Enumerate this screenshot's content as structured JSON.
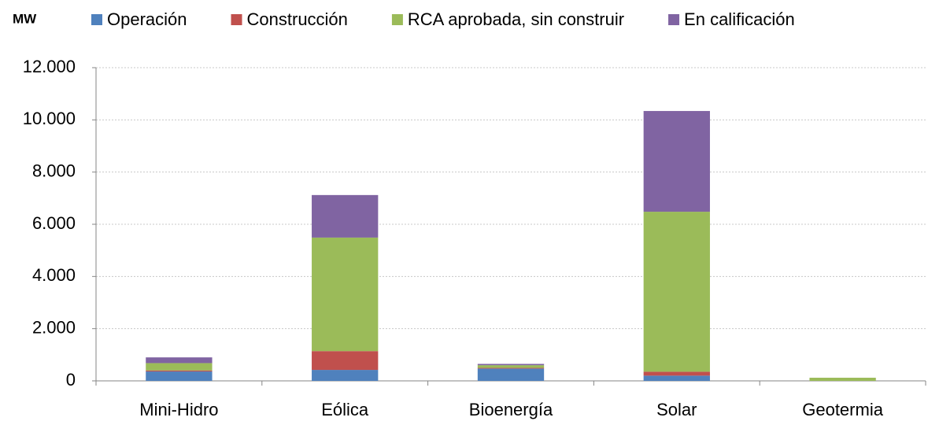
{
  "chart_data": {
    "type": "stacked_bar",
    "y_label": "MW",
    "categories": [
      "Mini-Hidro",
      "Eólica",
      "Bioenergía",
      "Solar",
      "Geotermia"
    ],
    "series": [
      {
        "name": "Operación",
        "color": "#4f81bd",
        "values": [
          360,
          420,
          470,
          200,
          0
        ]
      },
      {
        "name": "Construcción",
        "color": "#c0504d",
        "values": [
          40,
          720,
          30,
          150,
          0
        ]
      },
      {
        "name": "RCA aprobada, sin construir",
        "color": "#9bbb59",
        "values": [
          280,
          4350,
          100,
          6130,
          120
        ]
      },
      {
        "name": "En calificación",
        "color": "#8064a2",
        "values": [
          220,
          1630,
          50,
          3860,
          0
        ]
      }
    ],
    "ylim": [
      0,
      12000
    ],
    "yticks": [
      0,
      {
        "value": 2000,
        "label": "2.000"
      },
      {
        "value": 4000,
        "label": "4.000"
      },
      {
        "value": 6000,
        "label": "6.000"
      },
      {
        "value": 8000,
        "label": "8.000"
      },
      {
        "value": 10000,
        "label": "10.000"
      },
      {
        "value": 12000,
        "label": "12.000"
      }
    ],
    "grid": true
  }
}
